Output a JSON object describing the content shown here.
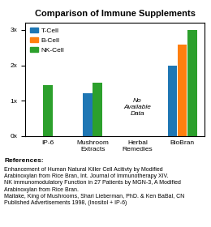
{
  "chart_data": {
    "type": "bar",
    "title": "Comparison of Immune Supplements",
    "categories": [
      "IP-6",
      "Mushroom\nExtracts",
      "Herbal\nRemedies",
      "BioBran"
    ],
    "series": [
      {
        "name": "T-Cell",
        "values": [
          null,
          1.22,
          null,
          2.0
        ]
      },
      {
        "name": "B-Cell",
        "values": [
          null,
          null,
          null,
          2.58
        ]
      },
      {
        "name": "NK-Cell",
        "values": [
          1.45,
          1.5,
          null,
          3.0
        ]
      }
    ],
    "ylim": [
      0,
      3.2
    ],
    "yticks": [
      {
        "value": 0,
        "label": "0x"
      },
      {
        "value": 1,
        "label": "1x"
      },
      {
        "value": 2,
        "label": "2x"
      },
      {
        "value": 3,
        "label": "3x"
      }
    ],
    "legend": "upper left",
    "annotations": [
      {
        "text": "No\nAvailable\nData",
        "category": "Herbal\nRemedies"
      }
    ],
    "notes": [
      "References:",
      "Enhancement of Human Natural Killer Cell Acitivty by Modified\nArabinoxylan from Rice Bran, Int. Journal of Immunotherapy XIV.\nNK immunomodulatory Function in 27 Patients by MGN-3, A Modified\nArabinoxylan from Rice Bran.\nMaitake, King of Mushrooms, Shari Lieberman, PhD. & Ken BaBal, CN\nPublished Advertisements 1998, (Inositol + IP-6)"
    ]
  }
}
